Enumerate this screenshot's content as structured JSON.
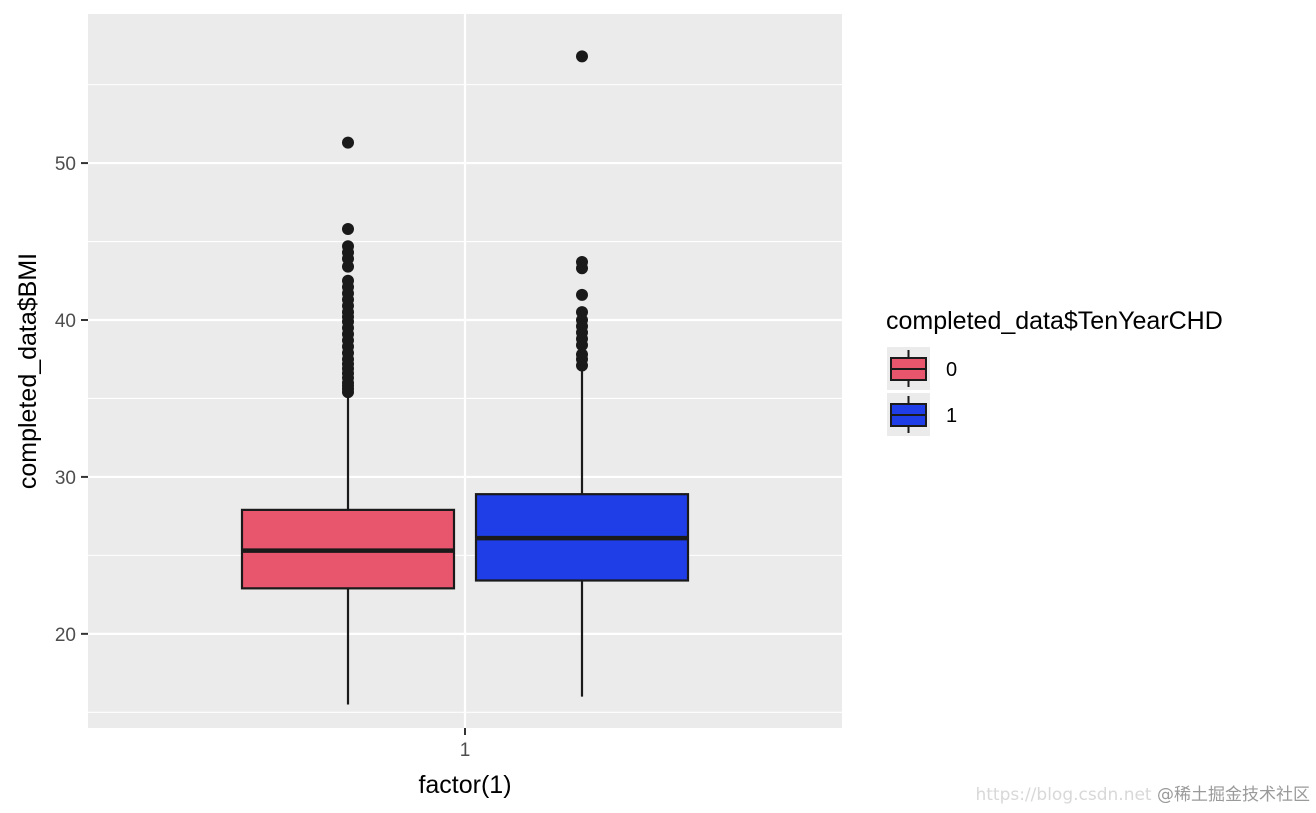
{
  "chart_data": {
    "type": "boxplot",
    "x_categories": [
      "1"
    ],
    "xlabel": "factor(1)",
    "ylabel": "completed_data$BMI",
    "ylim": [
      14.0,
      59.5
    ],
    "y_ticks": [
      20,
      30,
      40,
      50
    ],
    "grid": true,
    "legend": {
      "title": "completed_data$TenYearCHD",
      "placement": "right",
      "entries": [
        "0",
        "1"
      ]
    },
    "series": [
      {
        "name": "0",
        "color": "#E8566E",
        "box": {
          "min": 15.5,
          "q1": 22.9,
          "median": 25.3,
          "q3": 27.9,
          "max": 35.3
        },
        "outliers": [
          35.4,
          35.6,
          35.8,
          36.0,
          36.3,
          36.6,
          36.9,
          37.2,
          37.5,
          37.9,
          38.3,
          38.7,
          39.1,
          39.5,
          39.9,
          40.2,
          40.5,
          40.9,
          41.3,
          41.7,
          42.1,
          42.5,
          43.4,
          43.9,
          44.3,
          44.7,
          45.8,
          51.3
        ]
      },
      {
        "name": "1",
        "color": "#1F3EE8",
        "box": {
          "min": 16.0,
          "q1": 23.4,
          "median": 26.1,
          "q3": 28.9,
          "max": 36.9
        },
        "outliers": [
          37.1,
          37.5,
          37.8,
          38.4,
          38.8,
          39.2,
          39.6,
          40.0,
          40.5,
          41.6,
          43.3,
          43.7,
          56.8
        ]
      }
    ]
  },
  "watermark": {
    "faint_text": "https://blog.csdn.net",
    "text": "@稀土掘金技术社区"
  }
}
